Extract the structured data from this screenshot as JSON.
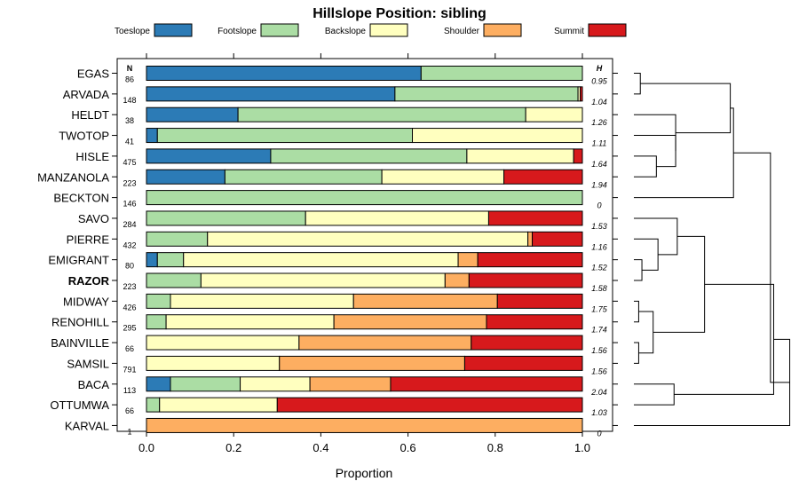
{
  "chart_data": {
    "type": "bar",
    "orientation": "horizontal",
    "stacked": true,
    "title": "Hillslope Position: sibling",
    "xlabel": "Proportion",
    "xlim": [
      0,
      1
    ],
    "xticks": [
      "0.0",
      "0.2",
      "0.4",
      "0.6",
      "0.8",
      "1.0"
    ],
    "n_header": "N",
    "h_header": "H",
    "highlight": "RAZOR",
    "legend_position": "top",
    "categories": [
      "EGAS",
      "ARVADA",
      "HELDT",
      "TWOTOP",
      "HISLE",
      "MANZANOLA",
      "BECKTON",
      "SAVO",
      "PIERRE",
      "EMIGRANT",
      "RAZOR",
      "MIDWAY",
      "RENOHILL",
      "BAINVILLE",
      "SAMSIL",
      "BACA",
      "OTTUMWA",
      "KARVAL"
    ],
    "n": [
      "86",
      "148",
      "38",
      "41",
      "475",
      "223",
      "146",
      "284",
      "432",
      "80",
      "223",
      "426",
      "295",
      "66",
      "791",
      "113",
      "66",
      "1"
    ],
    "h": [
      "0.95",
      "1.04",
      "1.26",
      "1.11",
      "1.64",
      "1.94",
      "0",
      "1.53",
      "1.16",
      "1.52",
      "1.58",
      "1.75",
      "1.74",
      "1.56",
      "1.56",
      "2.04",
      "1.03",
      "0"
    ],
    "series": [
      {
        "name": "Toeslope",
        "color": "#2c7bb6",
        "values": [
          0.63,
          0.57,
          0.21,
          0.025,
          0.285,
          0.18,
          0,
          0,
          0,
          0.025,
          0,
          0,
          0,
          0,
          0,
          0.055,
          0,
          0
        ]
      },
      {
        "name": "Footslope",
        "color": "#abdda4",
        "values": [
          0.37,
          0.42,
          0.66,
          0.585,
          0.45,
          0.36,
          1,
          0.365,
          0.14,
          0.06,
          0.125,
          0.055,
          0.045,
          0,
          0,
          0.16,
          0.03,
          0
        ]
      },
      {
        "name": "Backslope",
        "color": "#ffffbf",
        "values": [
          0,
          0.005,
          0.13,
          0.39,
          0.245,
          0.28,
          0,
          0.42,
          0.735,
          0.63,
          0.56,
          0.42,
          0.385,
          0.35,
          0.305,
          0.16,
          0.27,
          0
        ]
      },
      {
        "name": "Shoulder",
        "color": "#fdae61",
        "values": [
          0,
          0,
          0,
          0,
          0,
          0,
          0,
          0,
          0.01,
          0.045,
          0.055,
          0.33,
          0.35,
          0.395,
          0.425,
          0.185,
          0,
          1
        ]
      },
      {
        "name": "Summit",
        "color": "#d7191c",
        "values": [
          0,
          0.005,
          0,
          0,
          0.02,
          0.18,
          0,
          0.215,
          0.115,
          0.24,
          0.26,
          0.195,
          0.22,
          0.255,
          0.27,
          0.44,
          0.7,
          0
        ]
      }
    ],
    "dendrogram": "hierarchical clustering of series"
  }
}
